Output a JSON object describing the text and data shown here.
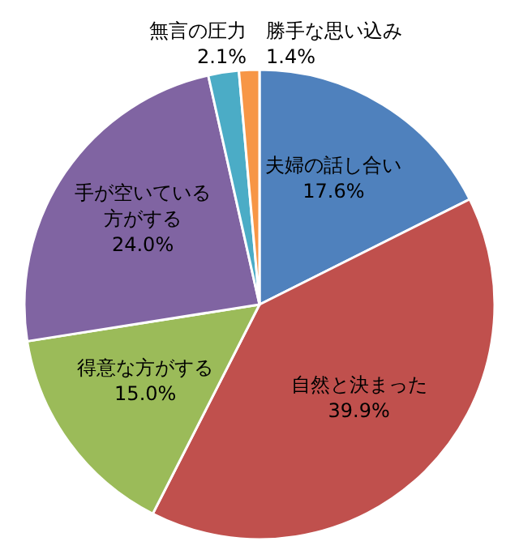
{
  "chart_data": {
    "type": "pie",
    "categories": [
      "夫婦の話し合い",
      "自然と決まった",
      "得意な方がする",
      "手が空いている方がする",
      "無言の圧力",
      "勝手な思い込み"
    ],
    "values": [
      17.6,
      39.9,
      15.0,
      24.0,
      2.1,
      1.4
    ],
    "colors": [
      "#4f81bd",
      "#c0504d",
      "#9bbb59",
      "#8064a2",
      "#4bacc6",
      "#f79646"
    ],
    "value_labels": [
      "17.6%",
      "39.9%",
      "15.0%",
      "24.0%",
      "2.1%",
      "1.4%"
    ]
  }
}
